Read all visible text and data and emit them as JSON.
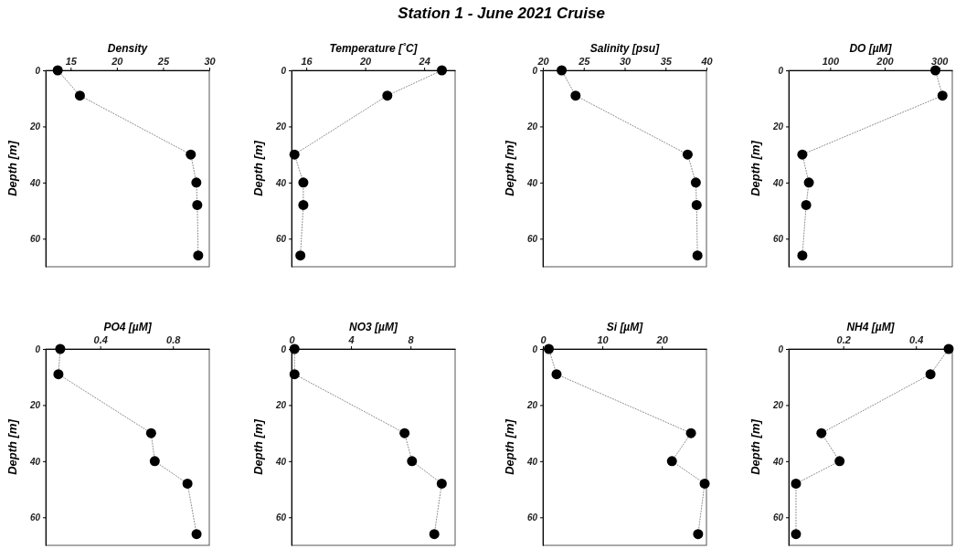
{
  "chart_data": [
    {
      "type": "line",
      "xlabel": "Density",
      "ylabel": "Depth [m]",
      "xlim": [
        12.3,
        30
      ],
      "xticks": [
        15,
        20,
        25,
        30
      ],
      "ylim": [
        70,
        0
      ],
      "yticks": [
        0,
        20,
        40,
        60
      ],
      "marker": "circle",
      "line_style": "dotted",
      "series": [
        {
          "color": "#000000",
          "x": [
            13.6,
            16.0,
            28.0,
            28.6,
            28.7,
            28.8
          ],
          "values": [
            0,
            9,
            30,
            40,
            48,
            66
          ]
        }
      ]
    },
    {
      "type": "line",
      "xlabel": "Temperature [˚C]",
      "ylabel": "Depth [m]",
      "xlim": [
        15,
        26.1
      ],
      "xticks": [
        16,
        20,
        24
      ],
      "ylim": [
        70,
        0
      ],
      "yticks": [
        0,
        20,
        40,
        60
      ],
      "marker": "circle",
      "line_style": "dotted",
      "series": [
        {
          "color": "#000000",
          "x": [
            25.2,
            21.5,
            15.2,
            15.8,
            15.8,
            15.6
          ],
          "values": [
            0,
            9,
            30,
            40,
            48,
            66
          ]
        }
      ]
    },
    {
      "type": "line",
      "title": "Station 1 - June 2021 Cruise",
      "xlabel": "Salinity [psu]",
      "ylabel": "Depth [m]",
      "xlim": [
        20,
        40
      ],
      "xticks": [
        20,
        25,
        30,
        35,
        40
      ],
      "ylim": [
        70,
        0
      ],
      "yticks": [
        0,
        20,
        40,
        60
      ],
      "marker": "circle",
      "line_style": "dotted",
      "series": [
        {
          "color": "#000000",
          "x": [
            22.3,
            24.0,
            37.7,
            38.7,
            38.8,
            38.9
          ],
          "values": [
            0,
            9,
            30,
            40,
            48,
            66
          ]
        }
      ]
    },
    {
      "type": "line",
      "xlabel": "DO [µM]",
      "ylabel": "Depth [m]",
      "xlim": [
        24,
        324
      ],
      "xticks": [
        100,
        200,
        300
      ],
      "ylim": [
        70,
        0
      ],
      "yticks": [
        0,
        20,
        40,
        60
      ],
      "marker": "circle",
      "line_style": "dotted",
      "series": [
        {
          "color": "#000000",
          "x": [
            293,
            306,
            49,
            61,
            56,
            49
          ],
          "values": [
            0,
            9,
            30,
            40,
            48,
            66
          ]
        }
      ]
    },
    {
      "type": "line",
      "xlabel": "PO4 [µM]",
      "ylabel": "Depth [m]",
      "xlim": [
        0.1,
        1.0
      ],
      "xticks": [
        0.4,
        0.8
      ],
      "ylim": [
        70,
        0
      ],
      "yticks": [
        0,
        20,
        40,
        60
      ],
      "marker": "circle",
      "line_style": "dotted",
      "series": [
        {
          "color": "#000000",
          "x": [
            0.18,
            0.17,
            0.68,
            0.7,
            0.88,
            0.93
          ],
          "values": [
            0,
            9,
            30,
            40,
            48,
            66
          ]
        }
      ]
    },
    {
      "type": "line",
      "xlabel": "NO3 [µM]",
      "ylabel": "Depth [m]",
      "xlim": [
        0,
        11
      ],
      "xticks": [
        0,
        4,
        8
      ],
      "ylim": [
        70,
        0
      ],
      "yticks": [
        0,
        20,
        40,
        60
      ],
      "marker": "circle",
      "line_style": "dotted",
      "series": [
        {
          "color": "#000000",
          "x": [
            0.2,
            0.2,
            7.6,
            8.1,
            10.1,
            9.6
          ],
          "values": [
            0,
            9,
            30,
            40,
            48,
            66
          ]
        }
      ]
    },
    {
      "type": "line",
      "xlabel": "Si [µM]",
      "ylabel": "Depth [m]",
      "xlim": [
        0,
        27.5
      ],
      "xticks": [
        0,
        10,
        20
      ],
      "ylim": [
        70,
        0
      ],
      "yticks": [
        0,
        20,
        40,
        60
      ],
      "marker": "circle",
      "line_style": "dotted",
      "series": [
        {
          "color": "#000000",
          "x": [
            1.0,
            2.3,
            24.9,
            21.7,
            27.2,
            26.1
          ],
          "values": [
            0,
            9,
            30,
            40,
            48,
            66
          ]
        }
      ]
    },
    {
      "type": "line",
      "xlabel": "NH4 [µM]",
      "ylabel": "Depth [m]",
      "xlim": [
        0.05,
        0.5
      ],
      "xticks": [
        0.2,
        0.4
      ],
      "ylim": [
        70,
        0
      ],
      "yticks": [
        0,
        20,
        40,
        60
      ],
      "marker": "circle",
      "line_style": "dotted",
      "series": [
        {
          "color": "#000000",
          "x": [
            0.49,
            0.44,
            0.14,
            0.19,
            0.07,
            0.07
          ],
          "values": [
            0,
            9,
            30,
            40,
            48,
            66
          ]
        }
      ]
    }
  ]
}
